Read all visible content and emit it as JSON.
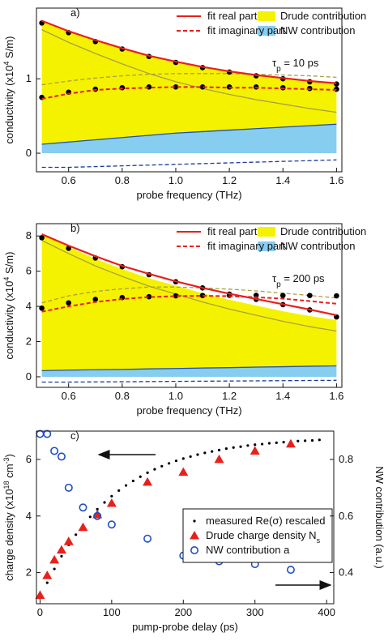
{
  "chart_data": [
    {
      "type": "line",
      "panel_label": "a)",
      "annotation": [
        {
          "text": "τ"
        },
        {
          "text": "p",
          "sub": true
        },
        {
          "text": " = 10 ps"
        }
      ],
      "xlabel": "probe frequency (THz)",
      "ylabel": [
        {
          "text": "conductivity (x10"
        },
        {
          "text": "4",
          "sup": true
        },
        {
          "text": " S/m)"
        }
      ],
      "x": [
        0.5,
        0.6,
        0.7,
        0.8,
        0.9,
        1.0,
        1.1,
        1.2,
        1.3,
        1.4,
        1.5,
        1.6
      ],
      "xlim": [
        0.48,
        1.62
      ],
      "xticks": [
        0.6,
        0.8,
        {
          "value": 1,
          "label": "1.0"
        },
        1.2,
        1.4,
        1.6
      ],
      "ylim": [
        -0.25,
        1.95
      ],
      "yticks": [
        0,
        1
      ],
      "series": [
        {
          "name": "Drude contribution",
          "style": "area",
          "color": "#f5f200",
          "line_color": "#a8a040",
          "values": [
            1.66,
            1.49,
            1.34,
            1.2,
            1.07,
            0.96,
            0.87,
            0.79,
            0.72,
            0.66,
            0.6,
            0.55
          ]
        },
        {
          "name": "NW contribution",
          "style": "area",
          "color": "#86cdf0",
          "line_color": "#2050b0",
          "values": [
            0.12,
            0.15,
            0.18,
            0.21,
            0.24,
            0.27,
            0.29,
            0.31,
            0.33,
            0.35,
            0.37,
            0.39
          ]
        },
        {
          "style": "dashed",
          "color": "#a8a040",
          "values": [
            0.92,
            0.97,
            1.01,
            1.04,
            1.06,
            1.07,
            1.07,
            1.07,
            1.06,
            1.05,
            1.04,
            1.02
          ]
        },
        {
          "style": "dashed",
          "color": "#1a3a9a",
          "values": [
            -0.19,
            -0.19,
            -0.18,
            -0.17,
            -0.16,
            -0.15,
            -0.14,
            -0.13,
            -0.12,
            -0.11,
            -0.1,
            -0.09
          ]
        },
        {
          "style": "dots",
          "color": "#000000",
          "values": [
            1.75,
            1.62,
            1.5,
            1.4,
            1.3,
            1.22,
            1.15,
            1.09,
            1.04,
            1.0,
            0.96,
            0.93
          ]
        },
        {
          "style": "dots",
          "color": "#000000",
          "values": [
            0.75,
            0.82,
            0.86,
            0.88,
            0.89,
            0.89,
            0.89,
            0.89,
            0.89,
            0.88,
            0.87,
            0.86
          ]
        },
        {
          "name": "fit real part",
          "style": "line",
          "color": "#e8201c",
          "values": [
            1.78,
            1.64,
            1.52,
            1.41,
            1.31,
            1.23,
            1.16,
            1.1,
            1.05,
            1.01,
            0.97,
            0.94
          ]
        },
        {
          "name": "fit imaginary part",
          "style": "dashed",
          "color": "#e8201c",
          "values": [
            0.73,
            0.8,
            0.85,
            0.87,
            0.88,
            0.89,
            0.89,
            0.88,
            0.88,
            0.87,
            0.86,
            0.85
          ]
        }
      ]
    },
    {
      "type": "line",
      "panel_label": "b)",
      "annotation": [
        {
          "text": "τ"
        },
        {
          "text": "p",
          "sub": true
        },
        {
          "text": " = 200 ps"
        }
      ],
      "xlabel": "probe frequency (THz)",
      "ylabel": [
        {
          "text": "conductivity (x10"
        },
        {
          "text": "4",
          "sup": true
        },
        {
          "text": " S/m)"
        }
      ],
      "x": [
        0.5,
        0.6,
        0.7,
        0.8,
        0.9,
        1.0,
        1.1,
        1.2,
        1.3,
        1.4,
        1.5,
        1.6
      ],
      "xlim": [
        0.48,
        1.62
      ],
      "xticks": [
        0.6,
        0.8,
        {
          "value": 1,
          "label": "1.0"
        },
        1.2,
        1.4,
        1.6
      ],
      "ylim": [
        -0.6,
        8.7
      ],
      "yticks": [
        0,
        2,
        4,
        6,
        8
      ],
      "series": [
        {
          "name": "Drude contribution",
          "style": "area",
          "color": "#f5f200",
          "line_color": "#a8a040",
          "values": [
            7.75,
            7.0,
            6.3,
            5.7,
            5.15,
            4.7,
            4.25,
            3.85,
            3.5,
            3.15,
            2.85,
            2.6
          ]
        },
        {
          "name": "NW contribution",
          "style": "area",
          "color": "#86cdf0",
          "line_color": "#2050b0",
          "values": [
            0.35,
            0.38,
            0.4,
            0.42,
            0.45,
            0.47,
            0.5,
            0.52,
            0.55,
            0.57,
            0.6,
            0.62
          ]
        },
        {
          "style": "dashed",
          "color": "#a8a040",
          "values": [
            4.2,
            4.6,
            4.85,
            5.0,
            5.1,
            5.1,
            5.05,
            4.98,
            4.88,
            4.75,
            4.62,
            4.48
          ]
        },
        {
          "style": "dashed",
          "color": "#1a3a9a",
          "values": [
            -0.3,
            -0.3,
            -0.29,
            -0.28,
            -0.27,
            -0.26,
            -0.25,
            -0.24,
            -0.23,
            -0.22,
            -0.21,
            -0.2
          ]
        },
        {
          "style": "dots",
          "color": "#000000",
          "values": [
            7.9,
            7.3,
            6.75,
            6.25,
            5.8,
            5.4,
            5.05,
            4.7,
            4.4,
            4.1,
            3.8,
            3.4
          ]
        },
        {
          "style": "dots",
          "color": "#000000",
          "values": [
            3.9,
            4.2,
            4.4,
            4.5,
            4.55,
            4.6,
            4.62,
            4.63,
            4.63,
            4.62,
            4.62,
            4.6
          ]
        },
        {
          "name": "fit real part",
          "style": "line",
          "color": "#e8201c",
          "values": [
            8.1,
            7.45,
            6.85,
            6.3,
            5.85,
            5.42,
            5.05,
            4.72,
            4.42,
            4.12,
            3.82,
            3.5
          ]
        },
        {
          "name": "fit imaginary part",
          "style": "dashed",
          "color": "#e8201c",
          "values": [
            3.7,
            4.0,
            4.25,
            4.42,
            4.53,
            4.58,
            4.6,
            4.58,
            4.52,
            4.44,
            4.3,
            4.15
          ]
        }
      ]
    },
    {
      "type": "scatter",
      "panel_label": "c)",
      "xlabel": "pump-probe delay (ps)",
      "ylabel": [
        {
          "text": "charge density (x10"
        },
        {
          "text": "18",
          "sup": true
        },
        {
          "text": " cm"
        },
        {
          "text": "-3",
          "sup": true
        },
        {
          "text": ")"
        }
      ],
      "y2label": "NW contribution (a.u.)",
      "xlim": [
        -5,
        410
      ],
      "xticks": [
        0,
        100,
        200,
        300,
        400
      ],
      "ylim": [
        0.9,
        7.0
      ],
      "yticks": [
        2,
        4,
        6
      ],
      "y2lim": [
        0.29,
        0.9
      ],
      "y2ticks": [
        0.4,
        0.6,
        0.8
      ],
      "series": [
        {
          "name": "measured Re(σ) rescaled",
          "marker": "dot",
          "color": "#000000",
          "x": [
            0,
            10,
            20,
            30,
            40,
            50,
            60,
            70,
            80,
            90,
            100,
            110,
            120,
            130,
            140,
            150,
            160,
            170,
            180,
            190,
            200,
            210,
            220,
            230,
            240,
            250,
            260,
            270,
            280,
            290,
            300,
            310,
            320,
            330,
            340,
            350,
            360,
            370,
            380,
            390
          ],
          "values": [
            1.1,
            1.64,
            2.13,
            2.58,
            2.98,
            3.34,
            3.67,
            3.97,
            4.24,
            4.48,
            4.7,
            4.9,
            5.08,
            5.24,
            5.39,
            5.53,
            5.65,
            5.76,
            5.86,
            5.95,
            6.03,
            6.1,
            6.17,
            6.23,
            6.28,
            6.33,
            6.38,
            6.42,
            6.45,
            6.49,
            6.52,
            6.54,
            6.57,
            6.59,
            6.61,
            6.63,
            6.65,
            6.66,
            6.67,
            6.69
          ]
        },
        {
          "name": "Drude charge density N",
          "name_sub": "s",
          "marker": "triangle",
          "color": "#e8201c",
          "x": [
            0,
            10,
            20,
            30,
            40,
            60,
            80,
            100,
            150,
            200,
            250,
            300,
            350
          ],
          "values": [
            1.2,
            1.9,
            2.45,
            2.8,
            3.1,
            3.6,
            4.05,
            4.45,
            5.2,
            5.55,
            6.0,
            6.3,
            6.55
          ]
        },
        {
          "name": "NW contribution a",
          "marker": "circle",
          "color": "#1f4fbf",
          "axis": "y2",
          "x": [
            0,
            10,
            20,
            30,
            40,
            60,
            80,
            100,
            150,
            200,
            250,
            300,
            350
          ],
          "values": [
            0.89,
            0.89,
            0.83,
            0.81,
            0.7,
            0.63,
            0.6,
            0.57,
            0.52,
            0.46,
            0.44,
            0.43,
            0.41
          ]
        }
      ]
    }
  ]
}
